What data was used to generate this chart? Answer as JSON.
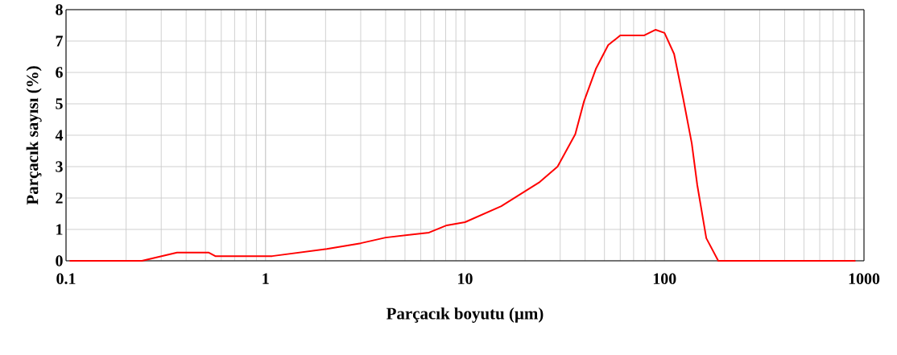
{
  "chart_data": {
    "type": "line",
    "xlabel": "Parçacık boyutu (µm)",
    "ylabel": "Parçacık sayısı (%)",
    "x": [
      0.105,
      0.24,
      0.36,
      0.52,
      0.56,
      1.08,
      2.03,
      3.0,
      4.0,
      6.6,
      8.1,
      10,
      15.2,
      23.7,
      29.1,
      35.7,
      39.5,
      45.4,
      52.2,
      60,
      79.2,
      90.3,
      100,
      111.7,
      124,
      137,
      146,
      162,
      186,
      900
    ],
    "series": [
      {
        "color": "#ff0000",
        "values": [
          0,
          0,
          0.26,
          0.26,
          0.15,
          0.15,
          0.38,
          0.56,
          0.74,
          0.9,
          1.13,
          1.23,
          1.74,
          2.51,
          3.0,
          4.03,
          5.08,
          6.13,
          6.87,
          7.18,
          7.18,
          7.36,
          7.26,
          6.59,
          5.18,
          3.74,
          2.41,
          0.72,
          0,
          0
        ]
      }
    ],
    "xlim": [
      0.1,
      1000
    ],
    "ylim": [
      0,
      8
    ],
    "xticks": [
      0.1,
      1,
      10,
      100,
      1000
    ],
    "yticks": [
      0,
      1,
      2,
      3,
      4,
      5,
      6,
      7,
      8
    ],
    "log": "x",
    "grid": true,
    "marker": "none",
    "line_style": "solid"
  }
}
